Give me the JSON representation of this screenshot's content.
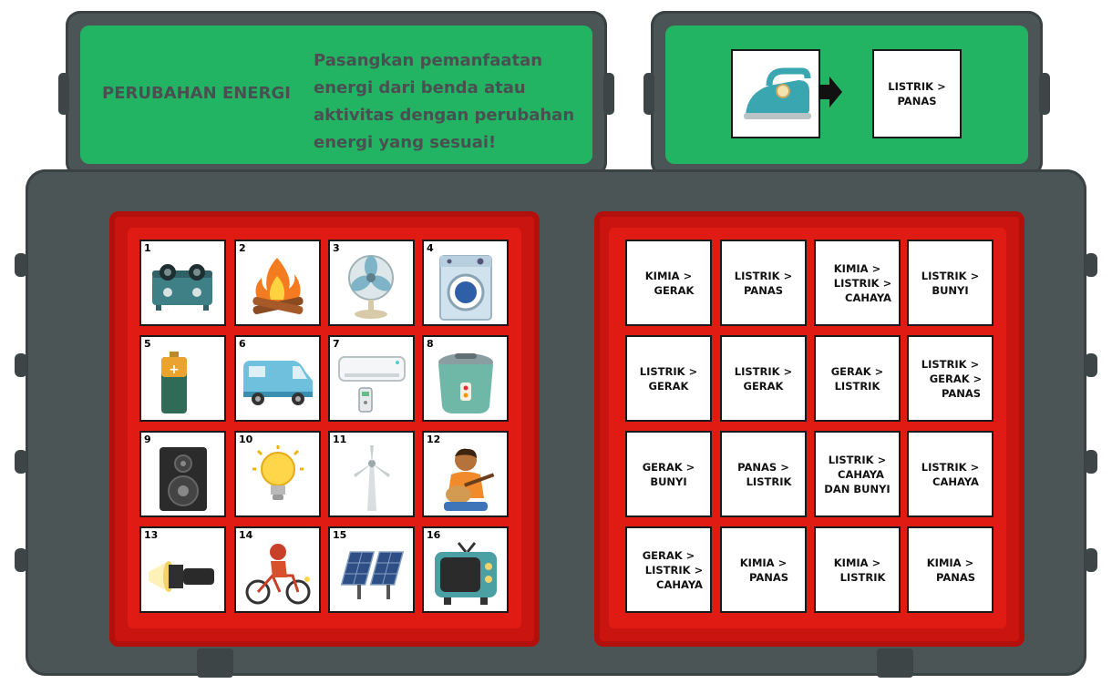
{
  "header": {
    "title": "PERUBAHAN ENERGI",
    "instruction": "Pasangkan pemanfaatan energi dari benda atau aktivitas dengan perubahan energi yang sesuai!"
  },
  "example": {
    "item_icon": "clothes-iron-icon",
    "arrow_icon": "arrow-right-icon",
    "answer": "LISTRIK >\nPANAS"
  },
  "items": [
    {
      "number": "1",
      "icon": "gas-stove-icon"
    },
    {
      "number": "2",
      "icon": "campfire-icon"
    },
    {
      "number": "3",
      "icon": "electric-fan-icon"
    },
    {
      "number": "4",
      "icon": "washing-machine-icon"
    },
    {
      "number": "5",
      "icon": "battery-icon"
    },
    {
      "number": "6",
      "icon": "van-icon"
    },
    {
      "number": "7",
      "icon": "air-conditioner-icon"
    },
    {
      "number": "8",
      "icon": "rice-cooker-icon"
    },
    {
      "number": "9",
      "icon": "speaker-icon"
    },
    {
      "number": "10",
      "icon": "light-bulb-icon"
    },
    {
      "number": "11",
      "icon": "wind-turbine-icon"
    },
    {
      "number": "12",
      "icon": "guitar-player-icon"
    },
    {
      "number": "13",
      "icon": "flashlight-icon"
    },
    {
      "number": "14",
      "icon": "cyclist-icon"
    },
    {
      "number": "15",
      "icon": "solar-panel-icon"
    },
    {
      "number": "16",
      "icon": "television-icon"
    }
  ],
  "answers": [
    "KIMIA >\n   GERAK",
    "LISTRIK >\nPANAS",
    "KIMIA >\n   LISTRIK >\n      CAHAYA",
    "LISTRIK >\nBUNYI",
    "LISTRIK >\nGERAK",
    "LISTRIK >\nGERAK",
    "GERAK >\nLISTRIK",
    "LISTRIK >\n   GERAK >\n      PANAS",
    "GERAK >\nBUNYI",
    "PANAS >\n   LISTRIK",
    "LISTRIK >\n  CAHAYA\nDAN BUNYI",
    "LISTRIK >\n   CAHAYA",
    "GERAK >\n   LISTRIK >\n      CAHAYA",
    "KIMIA >\n   PANAS",
    "KIMIA >\n   LISTRIK",
    "KIMIA >\n   PANAS"
  ],
  "colors": {
    "panel_green": "#22b463",
    "frame_gray": "#4c5556",
    "board_red": "#c9140f",
    "text_dark": "#4a4f52"
  }
}
